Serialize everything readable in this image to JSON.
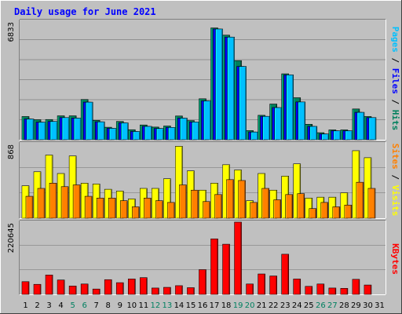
{
  "chart_data": [
    {
      "type": "bar",
      "title": "Daily usage for June 2021",
      "categories": [
        "1",
        "2",
        "3",
        "4",
        "5",
        "6",
        "7",
        "8",
        "9",
        "10",
        "11",
        "12",
        "13",
        "14",
        "15",
        "16",
        "17",
        "18",
        "19",
        "20",
        "21",
        "22",
        "23",
        "24",
        "25",
        "26",
        "27",
        "28",
        "29",
        "30",
        "31"
      ],
      "weekend_days": [
        5,
        6,
        12,
        13,
        19,
        20,
        26,
        27
      ],
      "ylim": [
        0,
        6833
      ],
      "ytick_label": "6833",
      "legend": [
        "Pages",
        "Files",
        "Hits"
      ],
      "series": [
        {
          "name": "Hits",
          "color": "#00805c",
          "values": [
            1320,
            1140,
            1150,
            1360,
            1360,
            2290,
            1100,
            710,
            1040,
            570,
            840,
            720,
            780,
            1350,
            1090,
            2330,
            6360,
            5950,
            4500,
            520,
            1390,
            2030,
            3750,
            2390,
            880,
            400,
            560,
            560,
            1750,
            1320,
            0
          ]
        },
        {
          "name": "Files",
          "color": "#0000ff",
          "values": [
            1180,
            1000,
            1040,
            1260,
            1230,
            2140,
            1020,
            650,
            960,
            470,
            760,
            640,
            700,
            1230,
            1010,
            2210,
            6300,
            5840,
            4170,
            440,
            1330,
            1830,
            3690,
            2150,
            760,
            330,
            510,
            510,
            1560,
            1260,
            0
          ]
        },
        {
          "name": "Pages",
          "color": "#00c0ff",
          "values": [
            1180,
            1000,
            1040,
            1260,
            1230,
            2140,
            1020,
            650,
            960,
            470,
            760,
            640,
            700,
            1230,
            1010,
            2210,
            6300,
            5840,
            4170,
            440,
            1330,
            1830,
            3690,
            2150,
            760,
            330,
            510,
            510,
            1560,
            1260,
            0
          ]
        }
      ]
    },
    {
      "type": "bar",
      "ylim": [
        0,
        868
      ],
      "ytick_label": "868",
      "legend": [
        "Sites",
        "Visits"
      ],
      "series": [
        {
          "name": "Visits",
          "color": "#ffff00",
          "values": [
            370,
            530,
            720,
            510,
            710,
            400,
            390,
            330,
            310,
            220,
            340,
            340,
            450,
            820,
            540,
            320,
            400,
            610,
            550,
            200,
            510,
            320,
            480,
            620,
            230,
            240,
            240,
            290,
            770,
            690,
            0
          ]
        },
        {
          "name": "Sites",
          "color": "#ff8000",
          "values": [
            250,
            340,
            400,
            360,
            380,
            250,
            230,
            230,
            200,
            130,
            230,
            200,
            180,
            380,
            320,
            190,
            270,
            440,
            430,
            180,
            340,
            210,
            270,
            280,
            110,
            180,
            130,
            150,
            410,
            340,
            0
          ]
        }
      ]
    },
    {
      "type": "bar",
      "ylim": [
        0,
        220645
      ],
      "ytick_label": "220645",
      "legend": [
        "KBytes"
      ],
      "series": [
        {
          "name": "KBytes",
          "color": "#ff0000",
          "values": [
            38000,
            30000,
            58000,
            43000,
            25000,
            31000,
            16000,
            44000,
            35000,
            46000,
            50000,
            19000,
            21000,
            26000,
            20000,
            74000,
            166000,
            150000,
            216000,
            31000,
            61000,
            55000,
            120000,
            46000,
            24000,
            31000,
            19000,
            18000,
            45000,
            28000,
            0
          ]
        }
      ]
    }
  ]
}
